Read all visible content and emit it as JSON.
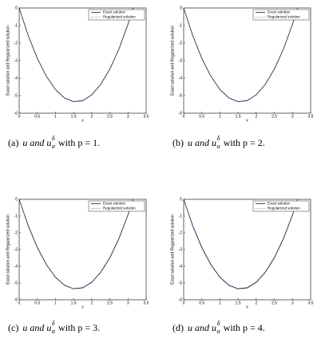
{
  "chart_data": [
    {
      "type": "line",
      "x": [
        0,
        0.25,
        0.5,
        0.75,
        1,
        1.25,
        1.5,
        1.75,
        2,
        2.25,
        2.5,
        2.75,
        3,
        3.14
      ],
      "series": [
        {
          "name": "Exact solution",
          "color": "#000000",
          "style": "solid",
          "values": [
            0,
            -1.57,
            -2.87,
            -3.89,
            -4.65,
            -5.13,
            -5.34,
            -5.28,
            -4.95,
            -4.35,
            -3.48,
            -2.34,
            -0.92,
            0
          ]
        },
        {
          "name": "Regularized solution",
          "color": "#3a4fb0",
          "style": "dotted",
          "values": [
            0,
            -1.6,
            -2.9,
            -3.9,
            -4.67,
            -5.15,
            -5.35,
            -5.3,
            -4.97,
            -4.37,
            -3.5,
            -2.37,
            -0.95,
            -0.02
          ]
        }
      ],
      "xlim": [
        0,
        3.5
      ],
      "xticks": [
        0,
        0.5,
        1,
        1.5,
        2,
        2.5,
        3,
        3.5
      ],
      "ylim": [
        -6,
        0
      ],
      "yticks": [
        0,
        -1,
        -2,
        -3,
        -4,
        -5,
        -6
      ],
      "xlabel": "x",
      "ylabel": "Exact solution and Regularized solution",
      "legend": "upper-right",
      "caption": {
        "label": "(a)",
        "main": "u and u",
        "sub": "α",
        "sup": "δ",
        "rest": "with p = 1."
      }
    },
    {
      "type": "line",
      "x": [
        0,
        0.25,
        0.5,
        0.75,
        1,
        1.25,
        1.5,
        1.75,
        2,
        2.25,
        2.5,
        2.75,
        3,
        3.14
      ],
      "series": [
        {
          "name": "Exact solution",
          "color": "#000000",
          "style": "solid",
          "values": [
            0,
            -1.57,
            -2.87,
            -3.89,
            -4.65,
            -5.13,
            -5.34,
            -5.28,
            -4.95,
            -4.35,
            -3.48,
            -2.34,
            -0.92,
            0
          ]
        },
        {
          "name": "Regularized solution",
          "color": "#3a4fb0",
          "style": "dotted",
          "values": [
            0,
            -1.6,
            -2.9,
            -3.9,
            -4.67,
            -5.15,
            -5.35,
            -5.3,
            -4.97,
            -4.37,
            -3.5,
            -2.37,
            -0.95,
            -0.02
          ]
        }
      ],
      "xlim": [
        0,
        3.5
      ],
      "xticks": [
        0,
        0.5,
        1,
        1.5,
        2,
        2.5,
        3,
        3.5
      ],
      "ylim": [
        -6,
        0
      ],
      "yticks": [
        0,
        -1,
        -2,
        -3,
        -4,
        -5,
        -6
      ],
      "xlabel": "x",
      "ylabel": "Exact solution and Regularized solution",
      "legend": "upper-right",
      "caption": {
        "label": "(b)",
        "main": "u and u",
        "sub": "α",
        "sup": "δ",
        "rest": "with p = 2."
      }
    },
    {
      "type": "line",
      "x": [
        0,
        0.25,
        0.5,
        0.75,
        1,
        1.25,
        1.5,
        1.75,
        2,
        2.25,
        2.5,
        2.75,
        3,
        3.14
      ],
      "series": [
        {
          "name": "Exact solution",
          "color": "#000000",
          "style": "solid",
          "values": [
            0,
            -1.57,
            -2.87,
            -3.89,
            -4.65,
            -5.13,
            -5.34,
            -5.28,
            -4.95,
            -4.35,
            -3.48,
            -2.34,
            -0.92,
            0
          ]
        },
        {
          "name": "Regularized solution",
          "color": "#3a4fb0",
          "style": "dotted",
          "values": [
            0,
            -1.62,
            -2.92,
            -3.92,
            -4.68,
            -5.16,
            -5.36,
            -5.31,
            -4.98,
            -4.38,
            -3.52,
            -2.39,
            -0.97,
            -0.03
          ]
        }
      ],
      "xlim": [
        0,
        3.5
      ],
      "xticks": [
        0,
        0.5,
        1,
        1.5,
        2,
        2.5,
        3,
        3.5
      ],
      "ylim": [
        -6,
        0
      ],
      "yticks": [
        0,
        -1,
        -2,
        -3,
        -4,
        -5,
        -6
      ],
      "xlabel": "x",
      "ylabel": "Exact solution and Regularized solution",
      "legend": "upper-right",
      "caption": {
        "label": "(c)",
        "main": "u and u",
        "sub": "α",
        "sup": "δ",
        "rest": "with p = 3."
      }
    },
    {
      "type": "line",
      "x": [
        0,
        0.25,
        0.5,
        0.75,
        1,
        1.25,
        1.5,
        1.75,
        2,
        2.25,
        2.5,
        2.75,
        3,
        3.14
      ],
      "series": [
        {
          "name": "Exact solution",
          "color": "#000000",
          "style": "solid",
          "values": [
            0,
            -1.57,
            -2.87,
            -3.89,
            -4.65,
            -5.13,
            -5.34,
            -5.28,
            -4.95,
            -4.35,
            -3.48,
            -2.34,
            -0.92,
            0
          ]
        },
        {
          "name": "Regularized solution",
          "color": "#3a4fb0",
          "style": "dotted",
          "values": [
            0,
            -1.63,
            -2.93,
            -3.93,
            -4.69,
            -5.17,
            -5.37,
            -5.32,
            -4.99,
            -4.39,
            -3.53,
            -2.4,
            -0.98,
            -0.04
          ]
        }
      ],
      "xlim": [
        0,
        3.5
      ],
      "xticks": [
        0,
        0.5,
        1,
        1.5,
        2,
        2.5,
        3,
        3.5
      ],
      "ylim": [
        -6,
        0
      ],
      "yticks": [
        0,
        -1,
        -2,
        -3,
        -4,
        -5,
        -6
      ],
      "xlabel": "x",
      "ylabel": "Exact solution and Regularized solution",
      "legend": "upper-right",
      "caption": {
        "label": "(d)",
        "main": "u and u",
        "sub": "α",
        "sup": "δ",
        "rest": "with p = 4."
      }
    }
  ]
}
